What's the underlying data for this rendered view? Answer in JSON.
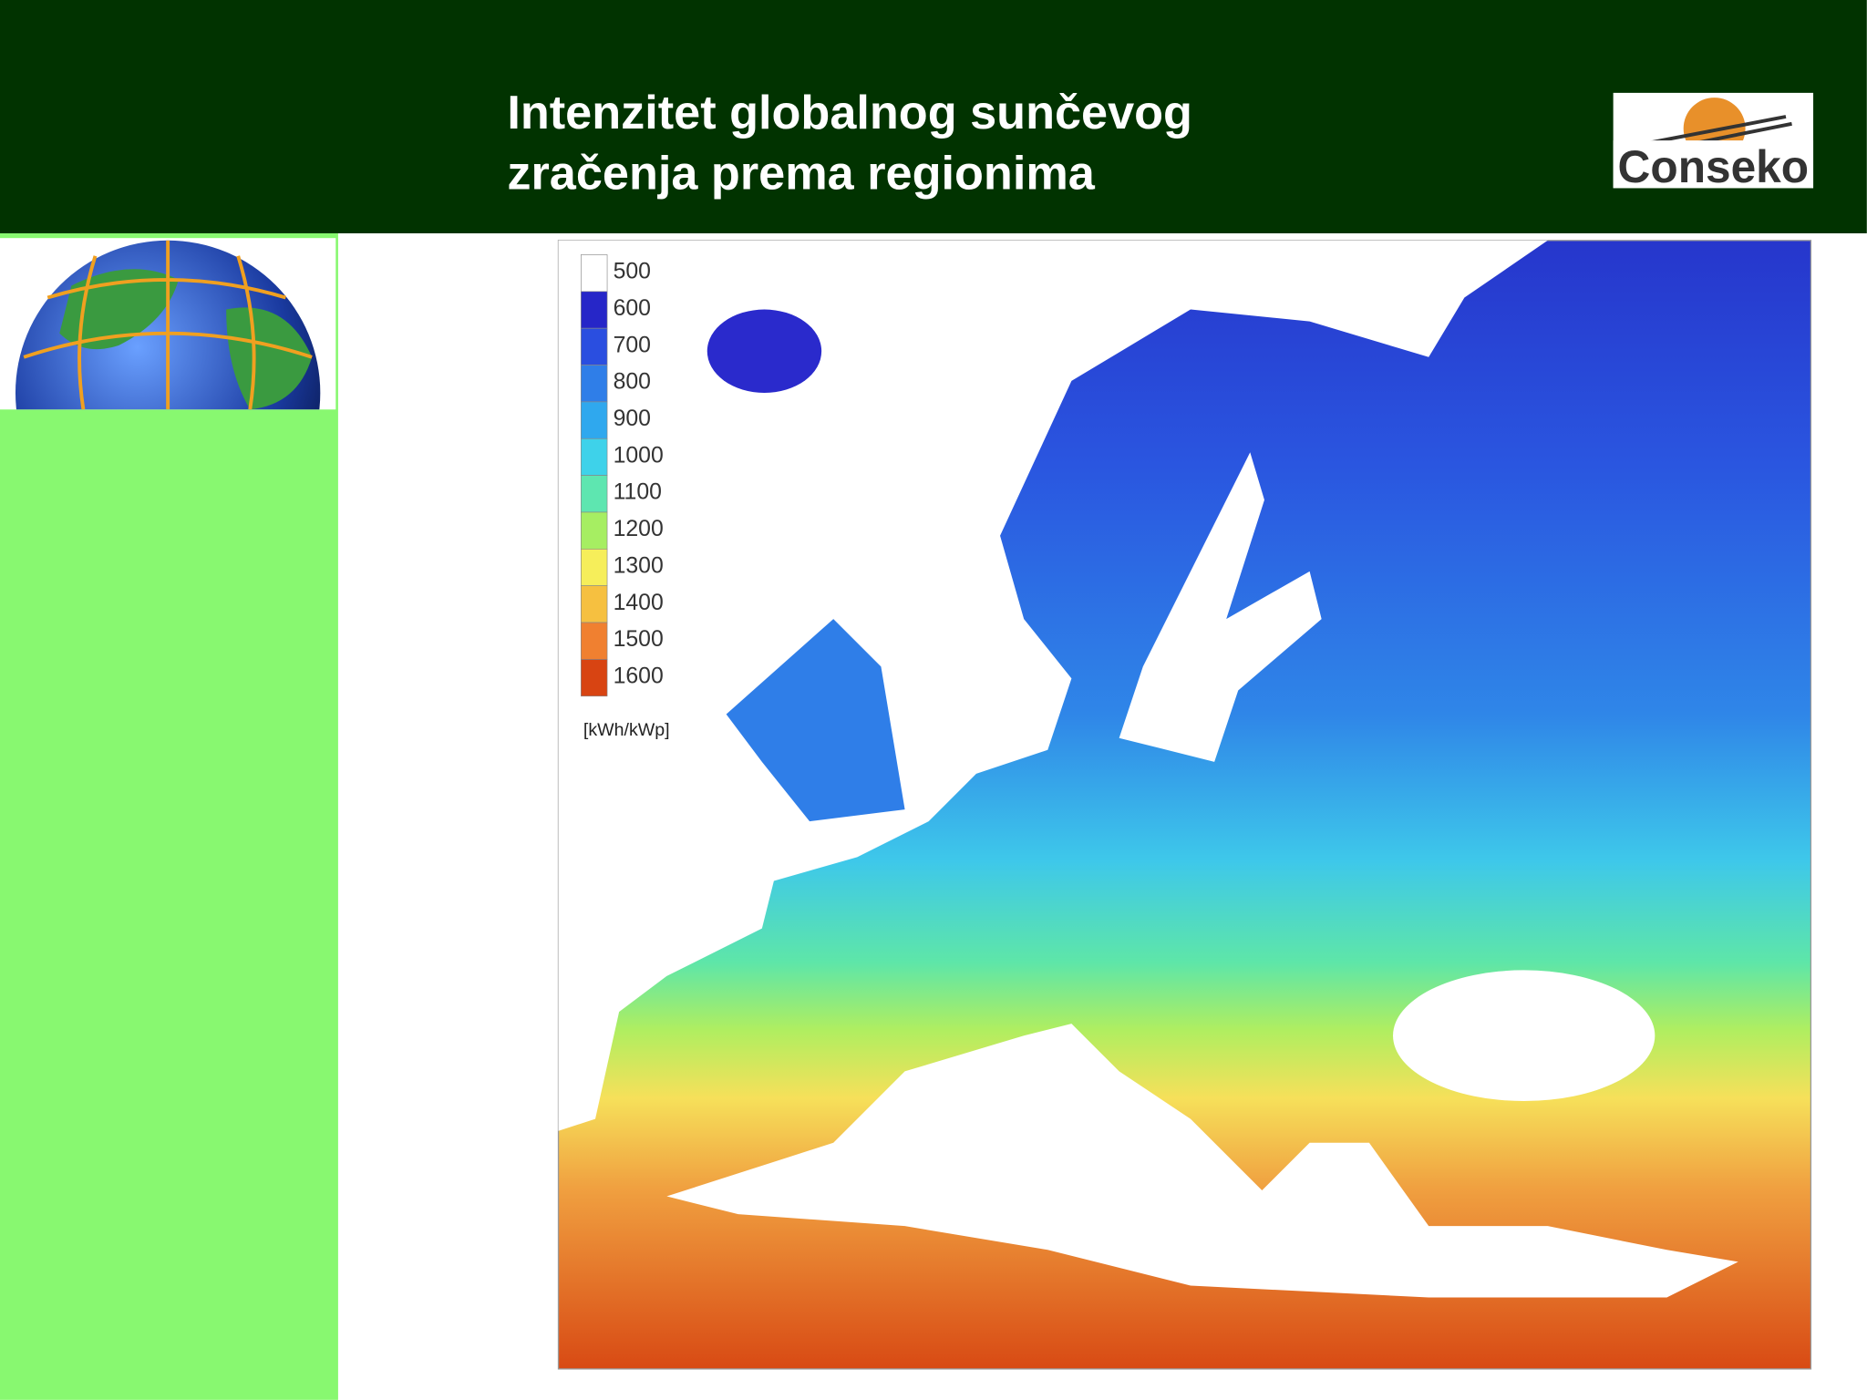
{
  "header": {
    "title_lines": [
      "Intenzitet globalnog sunčevog",
      "zračenja prema regionima"
    ]
  },
  "logo": {
    "text": "Conseko"
  },
  "map": {
    "legend": {
      "labels": [
        "500",
        "600",
        "700",
        "800",
        "900",
        "1000",
        "1100",
        "1200",
        "1300",
        "1400",
        "1500",
        "1600"
      ],
      "colors": [
        "#ffffff",
        "#2626c8",
        "#2a4ee0",
        "#2f7ee8",
        "#2fa8ee",
        "#3ed2ea",
        "#5ee6b0",
        "#a6ee62",
        "#f6ee5a",
        "#f6c040",
        "#f08030",
        "#d84412"
      ],
      "unit": "[kWh/kWp]"
    }
  }
}
